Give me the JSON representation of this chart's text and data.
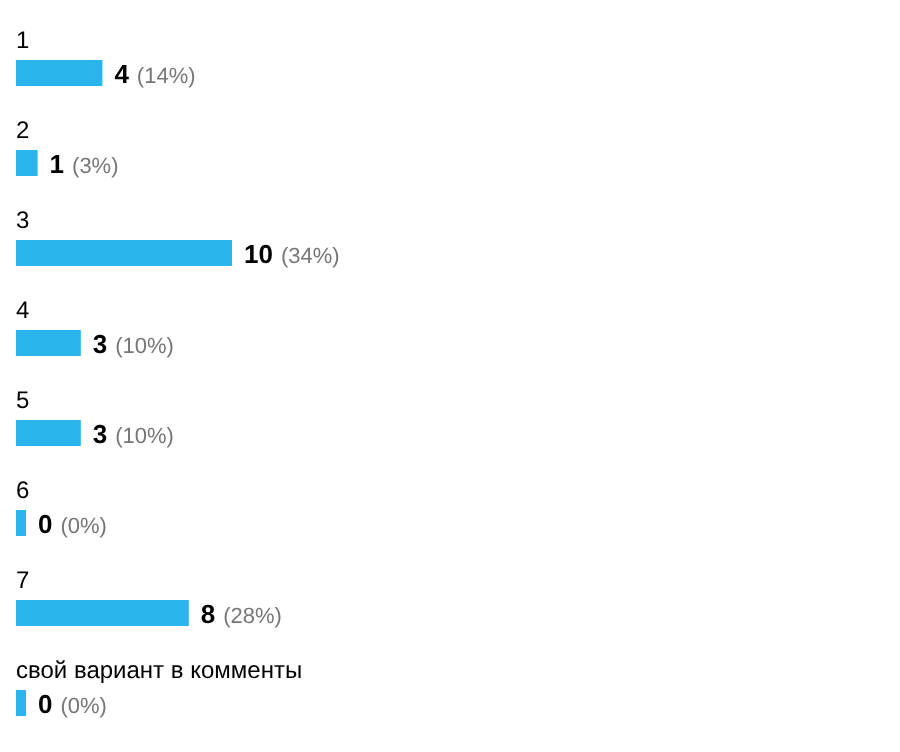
{
  "chart_data": {
    "type": "bar",
    "orientation": "horizontal",
    "categories": [
      "1",
      "2",
      "3",
      "4",
      "5",
      "6",
      "7",
      "свой вариант в комменты"
    ],
    "values": [
      4,
      1,
      10,
      3,
      3,
      0,
      8,
      0
    ],
    "color": "#2ab4ec",
    "value_labels": [
      "4 (14%)",
      "1 (3%)",
      "10 (34%)",
      "3 (10%)",
      "3 (10%)",
      "0 (0%)",
      "8 (28%)",
      "0 (0%)"
    ]
  }
}
